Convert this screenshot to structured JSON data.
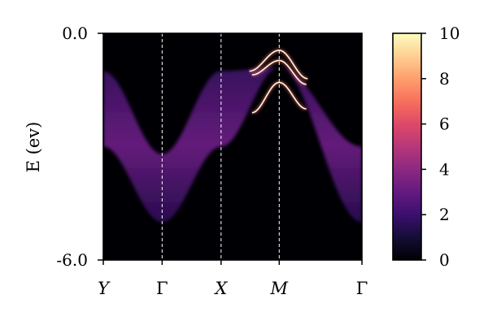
{
  "chart_data": {
    "type": "heatmap",
    "title": "",
    "xlabel": "",
    "ylabel": "E (ev)",
    "ylim": [
      -6.0,
      0.0
    ],
    "ytick_labels": [
      "0.0",
      "-6.0"
    ],
    "k_path": [
      {
        "label": "Y",
        "italic": true,
        "position": 0.0
      },
      {
        "label": "Γ",
        "italic": false,
        "position": 0.2275
      },
      {
        "label": "X",
        "italic": true,
        "position": 0.4554
      },
      {
        "label": "M",
        "italic": true,
        "position": 0.6802
      },
      {
        "label": "Γ",
        "italic": false,
        "position": 1.0
      }
    ],
    "vertical_lines_at": [
      "Γ",
      "X",
      "M"
    ],
    "spectral_band": {
      "description": "broad bulk continuum, energy vs k",
      "upper_edge_ev": [
        [
          0.0,
          -1.0
        ],
        [
          0.2275,
          -3.2
        ],
        [
          0.4554,
          -1.0
        ],
        [
          0.6802,
          -0.9
        ],
        [
          1.0,
          -3.0
        ]
      ],
      "lower_edge_ev": [
        [
          0.0,
          -3.0
        ],
        [
          0.2275,
          -5.0
        ],
        [
          0.4554,
          -3.0
        ],
        [
          0.6802,
          -0.9
        ],
        [
          1.0,
          -5.0
        ]
      ]
    },
    "sharp_bands": [
      {
        "name": "band-1",
        "points_ev": [
          [
            0.565,
            -1.0
          ],
          [
            0.6802,
            -0.45
          ],
          [
            0.79,
            -1.2
          ]
        ]
      },
      {
        "name": "band-2",
        "points_ev": [
          [
            0.575,
            -1.1
          ],
          [
            0.6802,
            -0.72
          ],
          [
            0.785,
            -1.35
          ]
        ]
      },
      {
        "name": "band-3",
        "points_ev": [
          [
            0.575,
            -2.1
          ],
          [
            0.6802,
            -1.3
          ],
          [
            0.785,
            -2.0
          ]
        ]
      }
    ],
    "colorbar": {
      "colormap": "magma",
      "range": [
        0,
        10
      ],
      "tick_labels": [
        "0",
        "2",
        "4",
        "6",
        "8",
        "10"
      ]
    }
  }
}
